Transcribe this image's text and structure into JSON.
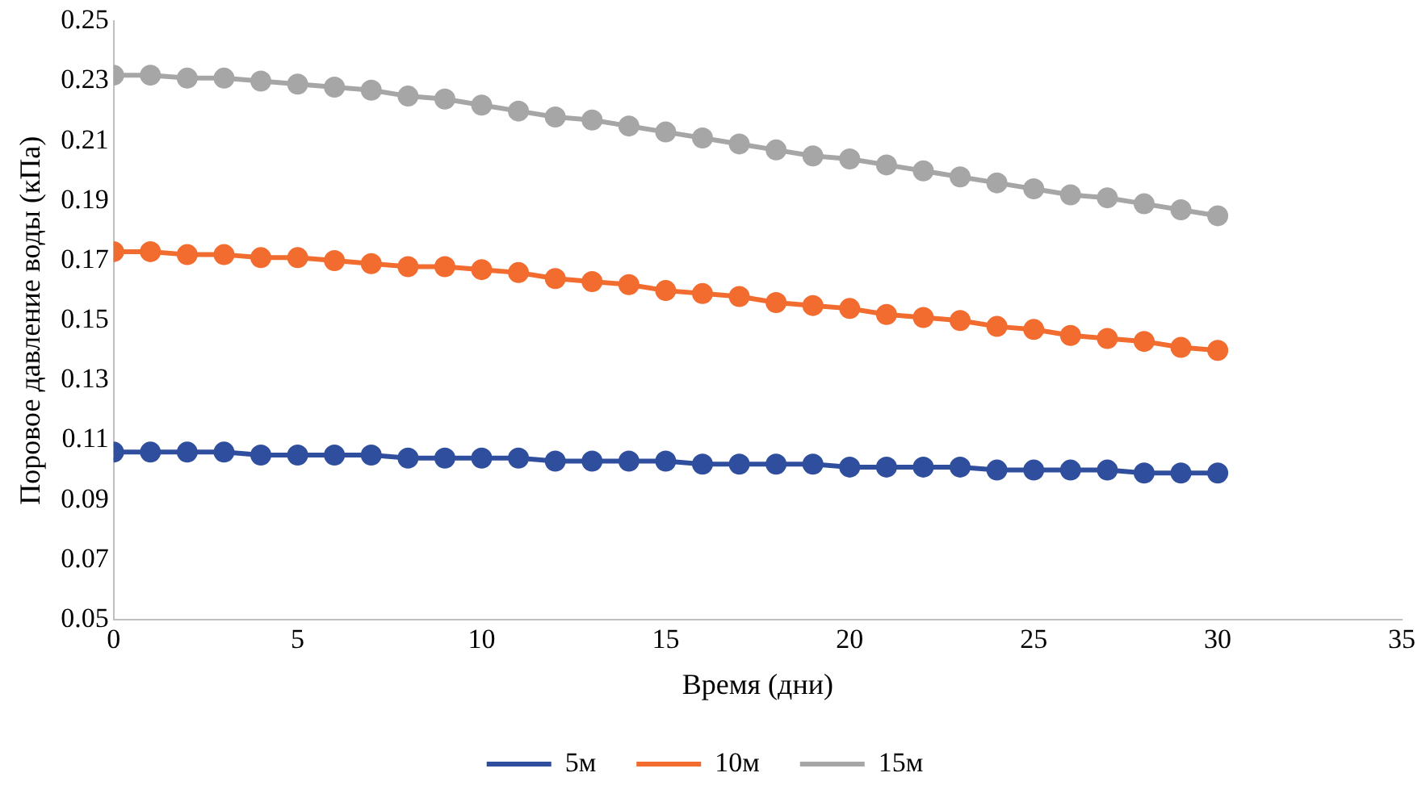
{
  "chart_data": {
    "type": "line",
    "xlabel": "Время (дни)",
    "ylabel": "Поровое давление воды (кПа)",
    "x": [
      0,
      1,
      2,
      3,
      4,
      5,
      6,
      7,
      8,
      9,
      10,
      11,
      12,
      13,
      14,
      15,
      16,
      17,
      18,
      19,
      20,
      21,
      22,
      23,
      24,
      25,
      26,
      27,
      28,
      29,
      30
    ],
    "series": [
      {
        "name": "5м",
        "color": "#2f4f9e",
        "values": [
          0.106,
          0.106,
          0.106,
          0.106,
          0.105,
          0.105,
          0.105,
          0.105,
          0.104,
          0.104,
          0.104,
          0.104,
          0.103,
          0.103,
          0.103,
          0.103,
          0.102,
          0.102,
          0.102,
          0.102,
          0.101,
          0.101,
          0.101,
          0.101,
          0.1,
          0.1,
          0.1,
          0.1,
          0.099,
          0.099,
          0.099
        ]
      },
      {
        "name": "10м",
        "color": "#f26b2f",
        "values": [
          0.173,
          0.173,
          0.172,
          0.172,
          0.171,
          0.171,
          0.17,
          0.169,
          0.168,
          0.168,
          0.167,
          0.166,
          0.164,
          0.163,
          0.162,
          0.16,
          0.159,
          0.158,
          0.156,
          0.155,
          0.154,
          0.152,
          0.151,
          0.15,
          0.148,
          0.147,
          0.145,
          0.144,
          0.143,
          0.141,
          0.14
        ]
      },
      {
        "name": "15м",
        "color": "#a6a6a6",
        "values": [
          0.232,
          0.232,
          0.231,
          0.231,
          0.23,
          0.229,
          0.228,
          0.227,
          0.225,
          0.224,
          0.222,
          0.22,
          0.218,
          0.217,
          0.215,
          0.213,
          0.211,
          0.209,
          0.207,
          0.205,
          0.204,
          0.202,
          0.2,
          0.198,
          0.196,
          0.194,
          0.192,
          0.191,
          0.189,
          0.187,
          0.185
        ]
      }
    ],
    "xlim": [
      0,
      35
    ],
    "xticks": [
      0,
      5,
      10,
      15,
      20,
      25,
      30,
      35
    ],
    "ylim": [
      0.05,
      0.25
    ],
    "yticks": [
      {
        "value": 0.05,
        "label": "0.05"
      },
      {
        "value": 0.07,
        "label": "0.07"
      },
      {
        "value": 0.09,
        "label": "0.09"
      },
      {
        "value": 0.11,
        "label": "0.11"
      },
      {
        "value": 0.13,
        "label": "0.13"
      },
      {
        "value": 0.15,
        "label": "0.15"
      },
      {
        "value": 0.17,
        "label": "0.17"
      },
      {
        "value": 0.19,
        "label": "0.19"
      },
      {
        "value": 0.21,
        "label": "0.21"
      },
      {
        "value": 0.23,
        "label": "0.23"
      },
      {
        "value": 0.25,
        "label": "0.25"
      }
    ],
    "grid": false,
    "legend": "bottom",
    "marker": "circle",
    "line_style": "solid"
  }
}
